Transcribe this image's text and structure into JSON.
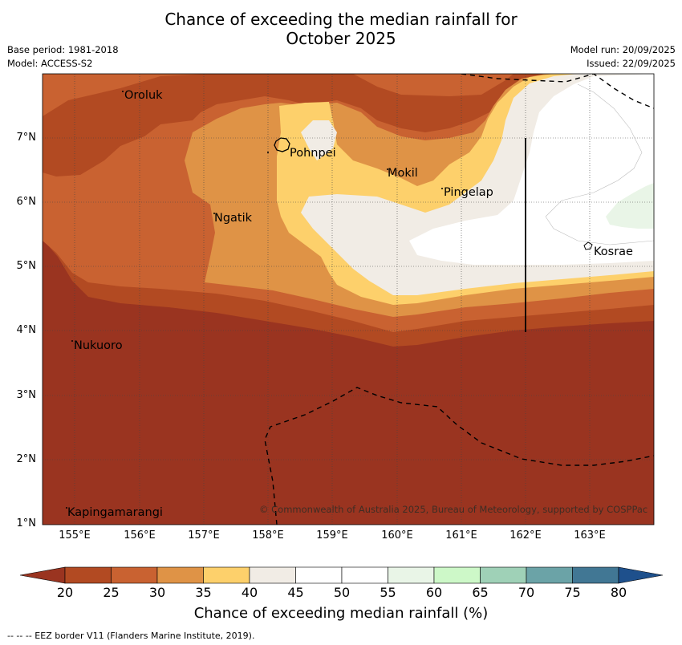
{
  "title_line1": "Chance of exceeding the median rainfall for",
  "title_line2": "October 2025",
  "meta_left": {
    "base_period": "Base period: 1981-2018",
    "model": "Model: ACCESS-S2"
  },
  "meta_right": {
    "model_run": "Model run: 20/09/2025",
    "issued": "Issued: 22/09/2025"
  },
  "lat_labels": [
    "7°N",
    "6°N",
    "5°N",
    "4°N",
    "3°N",
    "2°N",
    "1°N"
  ],
  "lon_labels": [
    "155°E",
    "156°E",
    "157°E",
    "158°E",
    "159°E",
    "160°E",
    "161°E",
    "162°E",
    "163°E"
  ],
  "places": {
    "oroluk": "Oroluk",
    "pohnpei": "Pohnpei",
    "mokil": "Mokil",
    "pingelap": "Pingelap",
    "ngatik": "Ngatik",
    "kosrae": "Kosrae",
    "nukuoro": "Nukuoro",
    "kapingamarangi": "Kapingamarangi"
  },
  "copyright": "© Commonwealth of Australia 2025, Bureau of Meteorology, supported by COSPPac",
  "colorbar": {
    "ticks": [
      "20",
      "25",
      "30",
      "35",
      "40",
      "45",
      "50",
      "55",
      "60",
      "65",
      "70",
      "75",
      "80"
    ],
    "label": "Chance of exceeding median rainfall (%)",
    "colors": {
      "below_20": "#9a3420",
      "c20_25": "#b24a22",
      "c25_30": "#c96231",
      "c30_35": "#df9346",
      "c35_40": "#fdd06b",
      "c40_45": "#f1ece5",
      "c45_50": "#ffffff",
      "c50_55": "#ffffff",
      "c55_60": "#e9f5e7",
      "c60_65": "#cdf8c8",
      "c65_70": "#9fd1b7",
      "c70_75": "#6ba3a7",
      "c75_80": "#417794",
      "above_80": "#1e508c"
    }
  },
  "footnote": "--  --  -- EEZ border V11 (Flanders Marine Institute, 2019)."
}
